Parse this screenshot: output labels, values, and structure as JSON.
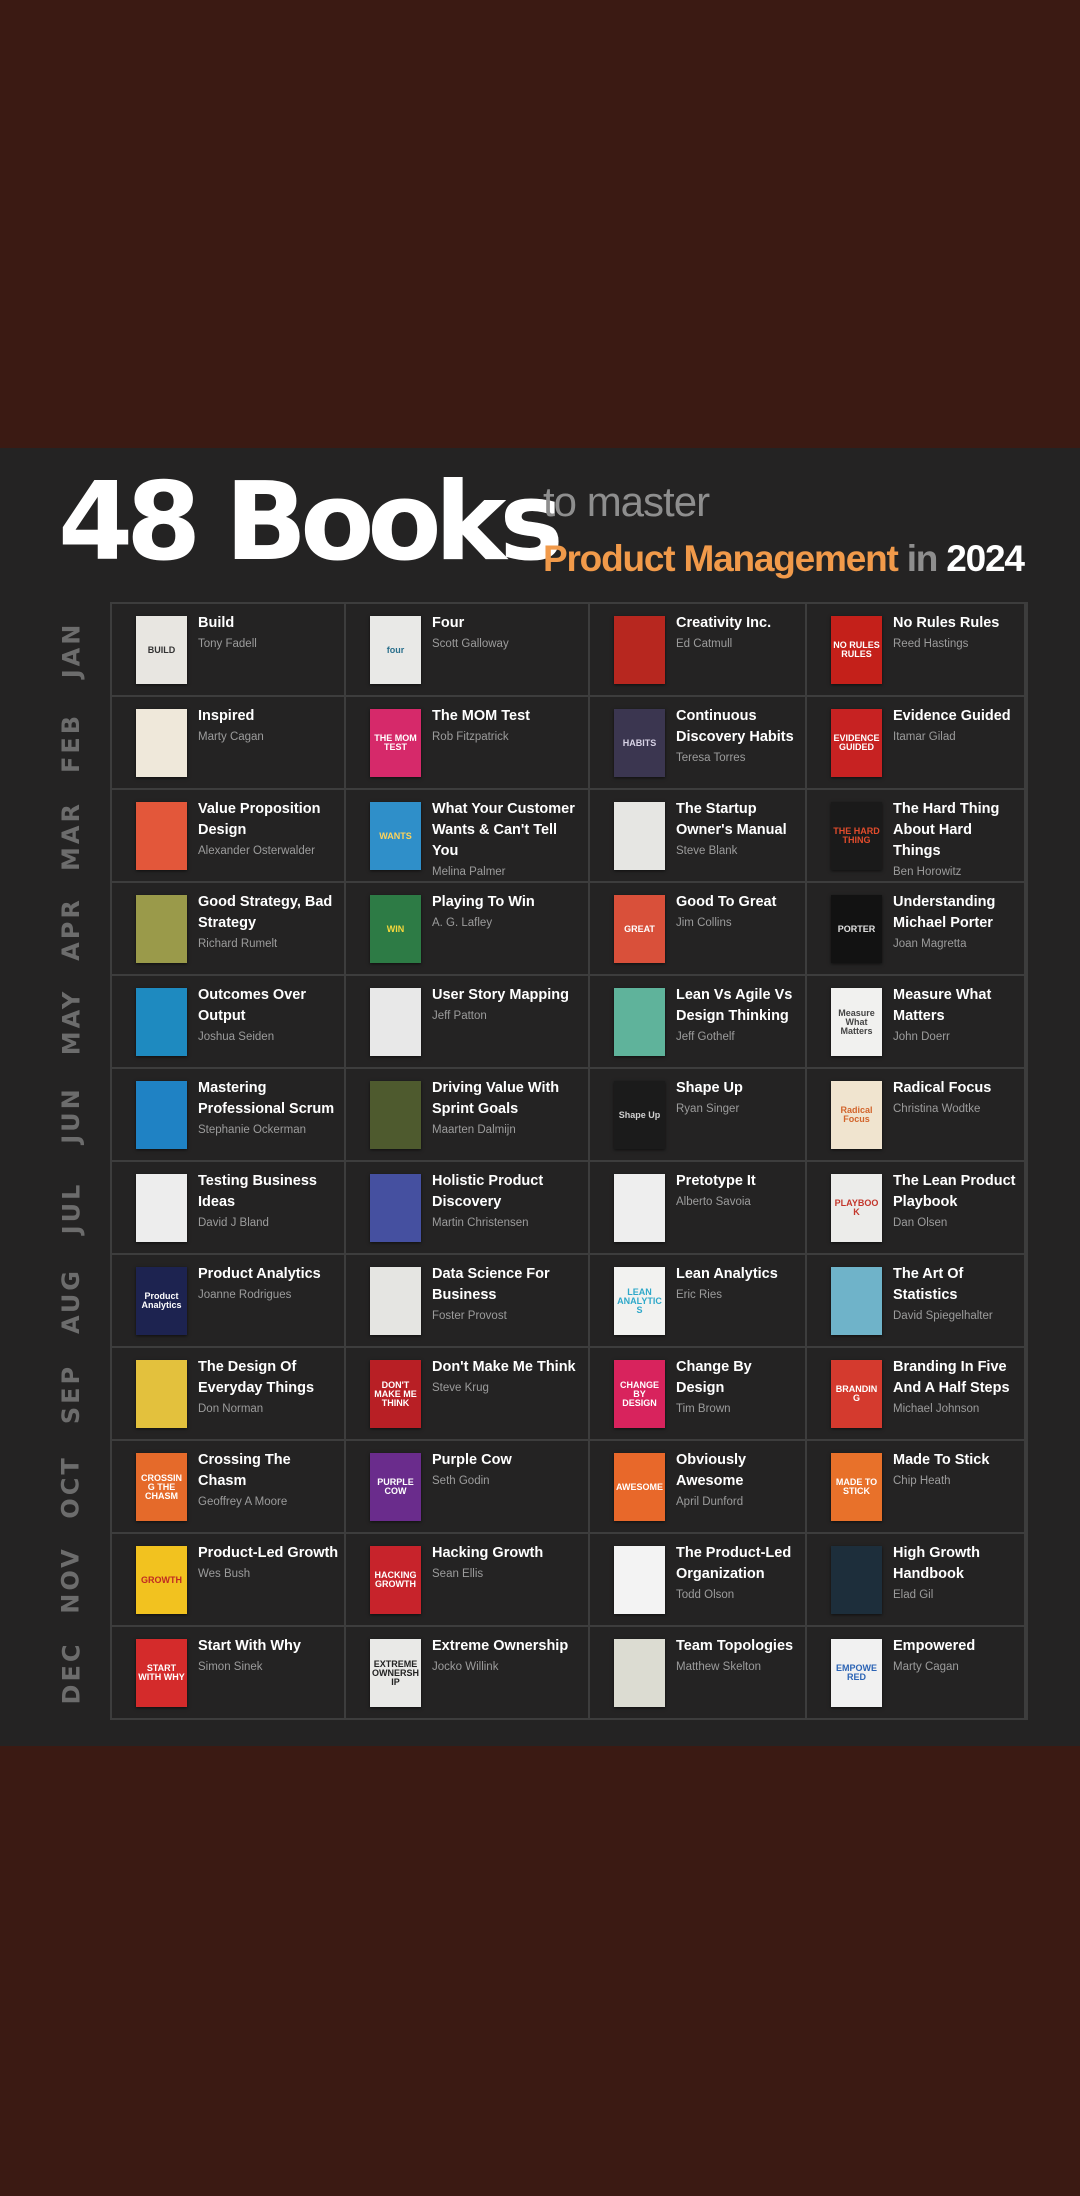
{
  "header": {
    "title": "48 Books",
    "subtitle_line1": "to master",
    "subtitle_topic": "Product Management",
    "subtitle_in": "in",
    "subtitle_year": "2024"
  },
  "colors": {
    "outer_background": "#3b1a13",
    "panel_background": "#242323",
    "accent": "#f19a4a",
    "muted": "#8e8e8e"
  },
  "months": [
    {
      "label": "JAN",
      "books": [
        {
          "title": "Build",
          "author": "Tony Fadell",
          "cover_color": "#e8e6e1",
          "cover_text": "BUILD",
          "cover_text_color": "#333333"
        },
        {
          "title": "Four",
          "author": "Scott Galloway",
          "cover_color": "#e9e9e7",
          "cover_text": "four",
          "cover_text_color": "#2a6f8c"
        },
        {
          "title": "Creativity Inc.",
          "author": "Ed Catmull",
          "cover_color": "#b7271f",
          "cover_text": "",
          "cover_text_color": "#ffffff"
        },
        {
          "title": "No Rules Rules",
          "author": "Reed Hastings",
          "cover_color": "#c4201a",
          "cover_text": "NO RULES RULES",
          "cover_text_color": "#ffffff"
        }
      ]
    },
    {
      "label": "FEB",
      "books": [
        {
          "title": "Inspired",
          "author": "Marty Cagan",
          "cover_color": "#efe8da",
          "cover_text": "",
          "cover_text_color": "#c9932e"
        },
        {
          "title": "The MOM Test",
          "author": "Rob Fitzpatrick",
          "cover_color": "#d6296a",
          "cover_text": "THE MOM TEST",
          "cover_text_color": "#ffffff"
        },
        {
          "title": "Continuous Discovery Habits",
          "author": "Teresa Torres",
          "cover_color": "#3b3650",
          "cover_text": "HABITS",
          "cover_text_color": "#d7d2e5"
        },
        {
          "title": "Evidence Guided",
          "author": "Itamar Gilad",
          "cover_color": "#c72222",
          "cover_text": "EVIDENCE GUIDED",
          "cover_text_color": "#ffffff"
        }
      ]
    },
    {
      "label": "MAR",
      "books": [
        {
          "title": "Value Proposition Design",
          "author": "Alexander Osterwalder",
          "cover_color": "#e3573a",
          "cover_text": "",
          "cover_text_color": "#ffffff"
        },
        {
          "title": "What Your Customer Wants & Can't Tell You",
          "author": "Melina Palmer",
          "cover_color": "#2f8fc9",
          "cover_text": "WANTS",
          "cover_text_color": "#ffd35a"
        },
        {
          "title": "The Startup Owner's Manual",
          "author": "Steve Blank",
          "cover_color": "#e6e6e3",
          "cover_text": "",
          "cover_text_color": "#333333"
        },
        {
          "title": "The Hard Thing About Hard Things",
          "author": "Ben Horowitz",
          "cover_color": "#1a1a1a",
          "cover_text": "THE HARD THING",
          "cover_text_color": "#e24c2c"
        }
      ]
    },
    {
      "label": "APR",
      "books": [
        {
          "title": "Good Strategy, Bad Strategy",
          "author": "Richard Rumelt",
          "cover_color": "#9a9a4a",
          "cover_text": "",
          "cover_text_color": "#ffffff"
        },
        {
          "title": "Playing To Win",
          "author": "A. G. Lafley",
          "cover_color": "#2d7b45",
          "cover_text": "WIN",
          "cover_text_color": "#f6d83c"
        },
        {
          "title": "Good To Great",
          "author": "Jim Collins",
          "cover_color": "#d9503a",
          "cover_text": "GREAT",
          "cover_text_color": "#ffffff"
        },
        {
          "title": "Understanding Michael Porter",
          "author": "Joan Magretta",
          "cover_color": "#121212",
          "cover_text": "PORTER",
          "cover_text_color": "#e0e0e0"
        }
      ]
    },
    {
      "label": "MAY",
      "books": [
        {
          "title": "Outcomes Over Output",
          "author": "Joshua Seiden",
          "cover_color": "#1e8ac0",
          "cover_text": "",
          "cover_text_color": "#ffffff"
        },
        {
          "title": "User Story Mapping",
          "author": "Jeff Patton",
          "cover_color": "#e8e8e8",
          "cover_text": "",
          "cover_text_color": "#333333"
        },
        {
          "title": "Lean Vs Agile Vs Design Thinking",
          "author": "Jeff Gothelf",
          "cover_color": "#5fb39b",
          "cover_text": "",
          "cover_text_color": "#ffffff"
        },
        {
          "title": "Measure What Matters",
          "author": "John Doerr",
          "cover_color": "#f1f1ef",
          "cover_text": "Measure What Matters",
          "cover_text_color": "#444444"
        }
      ]
    },
    {
      "label": "JUN",
      "books": [
        {
          "title": "Mastering Professional Scrum",
          "author": "Stephanie Ockerman",
          "cover_color": "#1f82c4",
          "cover_text": "",
          "cover_text_color": "#ffffff"
        },
        {
          "title": "Driving Value With Sprint Goals",
          "author": "Maarten Dalmijn",
          "cover_color": "#4e5a2e",
          "cover_text": "",
          "cover_text_color": "#ffffff"
        },
        {
          "title": "Shape Up",
          "author": "Ryan Singer",
          "cover_color": "#1b1b1b",
          "cover_text": "Shape Up",
          "cover_text_color": "#cfcfcf"
        },
        {
          "title": "Radical Focus",
          "author": "Christina Wodtke",
          "cover_color": "#f0e4cf",
          "cover_text": "Radical Focus",
          "cover_text_color": "#d2642b"
        }
      ]
    },
    {
      "label": "JUL",
      "books": [
        {
          "title": "Testing Business Ideas",
          "author": "David J Bland",
          "cover_color": "#ededed",
          "cover_text": "",
          "cover_text_color": "#333333"
        },
        {
          "title": "Holistic Product Discovery",
          "author": "Martin Christensen",
          "cover_color": "#4550a0",
          "cover_text": "",
          "cover_text_color": "#ffffff"
        },
        {
          "title": "Pretotype It",
          "author": "Alberto Savoia",
          "cover_color": "#eeeeee",
          "cover_text": "",
          "cover_text_color": "#333333"
        },
        {
          "title": "The Lean Product Playbook",
          "author": "Dan Olsen",
          "cover_color": "#ececea",
          "cover_text": "PLAYBOOK",
          "cover_text_color": "#c3362b"
        }
      ]
    },
    {
      "label": "AUG",
      "books": [
        {
          "title": "Product Analytics",
          "author": "Joanne Rodrigues",
          "cover_color": "#1d2350",
          "cover_text": "Product Analytics",
          "cover_text_color": "#ffffff"
        },
        {
          "title": "Data Science For Business",
          "author": "Foster Provost",
          "cover_color": "#e5e5e2",
          "cover_text": "",
          "cover_text_color": "#333333"
        },
        {
          "title": "Lean Analytics",
          "author": "Eric Ries",
          "cover_color": "#f2f2f0",
          "cover_text": "LEAN ANALYTICS",
          "cover_text_color": "#2ea8c9"
        },
        {
          "title": "The Art Of Statistics",
          "author": "David Spiegelhalter",
          "cover_color": "#6fb3c9",
          "cover_text": "",
          "cover_text_color": "#ffffff"
        }
      ]
    },
    {
      "label": "SEP",
      "books": [
        {
          "title": "The Design Of Everyday Things",
          "author": "Don Norman",
          "cover_color": "#e3c13d",
          "cover_text": "",
          "cover_text_color": "#333333"
        },
        {
          "title": "Don't Make Me Think",
          "author": "Steve Krug",
          "cover_color": "#b81f25",
          "cover_text": "DON'T MAKE ME THINK",
          "cover_text_color": "#ffffff"
        },
        {
          "title": "Change By Design",
          "author": "Tim Brown",
          "cover_color": "#d8235d",
          "cover_text": "CHANGE BY DESIGN",
          "cover_text_color": "#ffffff"
        },
        {
          "title": "Branding In Five And A Half Steps",
          "author": "Michael Johnson",
          "cover_color": "#d43a2e",
          "cover_text": "BRANDING",
          "cover_text_color": "#ffffff"
        }
      ]
    },
    {
      "label": "OCT",
      "books": [
        {
          "title": "Crossing The Chasm",
          "author": "Geoffrey A Moore",
          "cover_color": "#e56a2a",
          "cover_text": "CROSSING THE CHASM",
          "cover_text_color": "#ffffff"
        },
        {
          "title": "Purple Cow",
          "author": "Seth Godin",
          "cover_color": "#6a2c8c",
          "cover_text": "PURPLE COW",
          "cover_text_color": "#ffffff"
        },
        {
          "title": "Obviously Awesome",
          "author": "April Dunford",
          "cover_color": "#e8682a",
          "cover_text": "AWESOME",
          "cover_text_color": "#ffffff"
        },
        {
          "title": "Made To Stick",
          "author": "Chip Heath",
          "cover_color": "#e8712a",
          "cover_text": "MADE TO STICK",
          "cover_text_color": "#ffffff"
        }
      ]
    },
    {
      "label": "NOV",
      "books": [
        {
          "title": "Product-Led Growth",
          "author": "Wes Bush",
          "cover_color": "#f2c21f",
          "cover_text": "GROWTH",
          "cover_text_color": "#c02b22"
        },
        {
          "title": "Hacking Growth",
          "author": "Sean Ellis",
          "cover_color": "#c7232b",
          "cover_text": "HACKING GROWTH",
          "cover_text_color": "#ffffff"
        },
        {
          "title": "The Product-Led Organization",
          "author": "Todd Olson",
          "cover_color": "#f3f3f3",
          "cover_text": "",
          "cover_text_color": "#333333"
        },
        {
          "title": "High Growth Handbook",
          "author": "Elad Gil",
          "cover_color": "#1d2e3b",
          "cover_text": "",
          "cover_text_color": "#ffffff"
        }
      ]
    },
    {
      "label": "DEC",
      "books": [
        {
          "title": "Start With Why",
          "author": "Simon Sinek",
          "cover_color": "#d42b2b",
          "cover_text": "START WITH WHY",
          "cover_text_color": "#ffffff"
        },
        {
          "title": "Extreme Ownership",
          "author": "Jocko Willink",
          "cover_color": "#e9e9e7",
          "cover_text": "EXTREME OWNERSHIP",
          "cover_text_color": "#222222"
        },
        {
          "title": "Team Topologies",
          "author": "Matthew Skelton",
          "cover_color": "#dcdcd2",
          "cover_text": "",
          "cover_text_color": "#333333"
        },
        {
          "title": "Empowered",
          "author": "Marty Cagan",
          "cover_color": "#f1f1f1",
          "cover_text": "EMPOWERED",
          "cover_text_color": "#2c64b5"
        }
      ]
    }
  ]
}
